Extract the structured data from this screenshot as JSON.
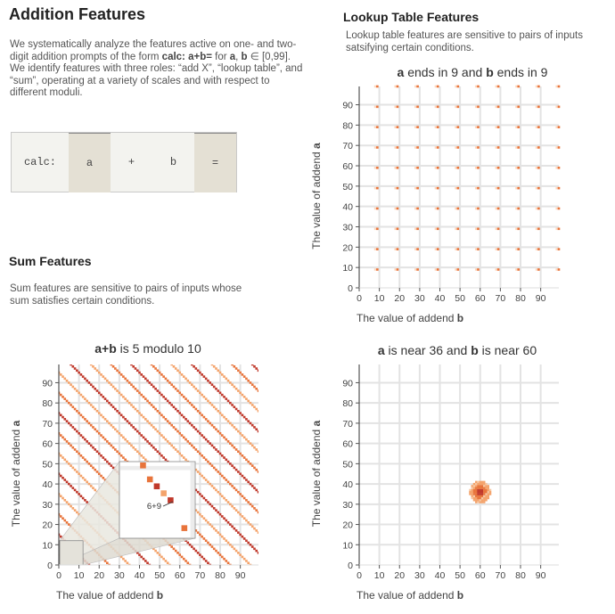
{
  "header": {
    "title": "Addition Features",
    "intro_parts": [
      "We systematically analyze the features active on one- and two-digit addition prompts of the form ",
      "calc: a+b=",
      " for ",
      "a",
      ", ",
      "b",
      " ∈ [0,99]. We identify features with three roles: “add X”, “lookup table”, and “sum”, operating at a variety of scales and with respect to different moduli."
    ]
  },
  "prompt_tokens": [
    "calc:",
    "a",
    "+",
    "b",
    "="
  ],
  "lookup": {
    "title": "Lookup Table Features",
    "description": "Lookup table features are sensitive to pairs of inputs satsifying certain conditions."
  },
  "sum": {
    "title": "Sum Features",
    "description": "Sum features are sensitive to pairs of inputs whose sum satisfies certain conditions."
  },
  "axis": {
    "ticks": [
      "0",
      "10",
      "20",
      "30",
      "40",
      "50",
      "60",
      "70",
      "80",
      "90"
    ],
    "xlabel_prefix": "The value of addend ",
    "xlabel_var": "b",
    "ylabel_prefix": "The value of addend ",
    "ylabel_var": "a"
  },
  "colors": {
    "dark": "#c0392b",
    "mid": "#e8743b",
    "light": "#f4a36b",
    "grid": "#e3e3e3"
  },
  "chart_data": [
    {
      "id": "ends-in-9",
      "type": "heatmap",
      "title_parts": [
        {
          "t": "a",
          "b": true
        },
        {
          "t": " ends in 9 and "
        },
        {
          "t": "b",
          "b": true
        },
        {
          "t": " ends in 9"
        }
      ],
      "xlim": [
        0,
        99
      ],
      "ylim": [
        0,
        99
      ],
      "rule": "active where a mod 10 = 9 and b mod 10 = 9 (faint activity at other a mod 10 = 9 cells)"
    },
    {
      "id": "sum-mod-10",
      "type": "heatmap",
      "title_parts": [
        {
          "t": "a+b",
          "b": true
        },
        {
          "t": " is 5 modulo 10"
        }
      ],
      "xlim": [
        0,
        99
      ],
      "ylim": [
        0,
        99
      ],
      "rule": "active where (a + b) mod 10 = 5",
      "inset_annotation": "6+9"
    },
    {
      "id": "near-36-60",
      "type": "heatmap",
      "title_parts": [
        {
          "t": "a",
          "b": true
        },
        {
          "t": " is near 36 and "
        },
        {
          "t": "b",
          "b": true
        },
        {
          "t": " is near 60"
        }
      ],
      "xlim": [
        0,
        99
      ],
      "ylim": [
        0,
        99
      ],
      "center": {
        "b": 60,
        "a": 36
      }
    }
  ]
}
